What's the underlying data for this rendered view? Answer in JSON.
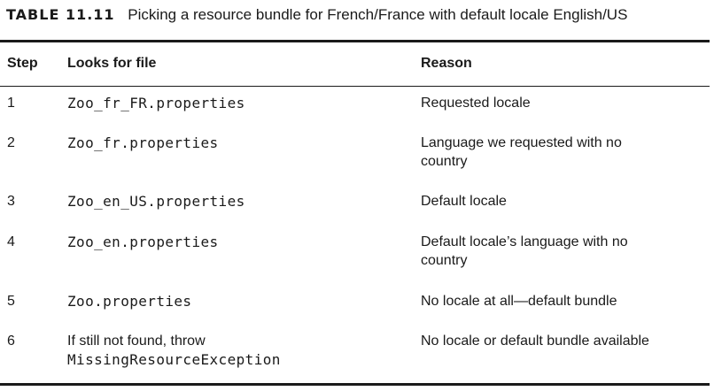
{
  "caption": {
    "label": "TABLE 11.11",
    "text": "Picking a resource bundle for French/France with default locale English/US"
  },
  "table": {
    "headers": {
      "step": "Step",
      "file": "Looks for file",
      "reason": "Reason"
    },
    "rows": [
      {
        "step": "1",
        "file_lines": [
          "Zoo_fr_FR.properties"
        ],
        "reason_lines": [
          "Requested locale"
        ]
      },
      {
        "step": "2",
        "file_lines": [
          "Zoo_fr.properties"
        ],
        "reason_lines": [
          "Language we requested with no",
          "country"
        ]
      },
      {
        "step": "3",
        "file_lines": [
          "Zoo_en_US.properties"
        ],
        "reason_lines": [
          "Default locale"
        ]
      },
      {
        "step": "4",
        "file_lines": [
          "Zoo_en.properties"
        ],
        "reason_lines": [
          "Default locale’s language with no",
          "country"
        ]
      },
      {
        "step": "5",
        "file_lines": [
          "Zoo.properties"
        ],
        "reason_lines": [
          "No locale at all—default bundle"
        ]
      },
      {
        "step": "6",
        "file_lines": [
          "If still not found, throw",
          "MissingResourceException"
        ],
        "reason_lines": [
          "No locale or default bundle available"
        ]
      }
    ]
  }
}
